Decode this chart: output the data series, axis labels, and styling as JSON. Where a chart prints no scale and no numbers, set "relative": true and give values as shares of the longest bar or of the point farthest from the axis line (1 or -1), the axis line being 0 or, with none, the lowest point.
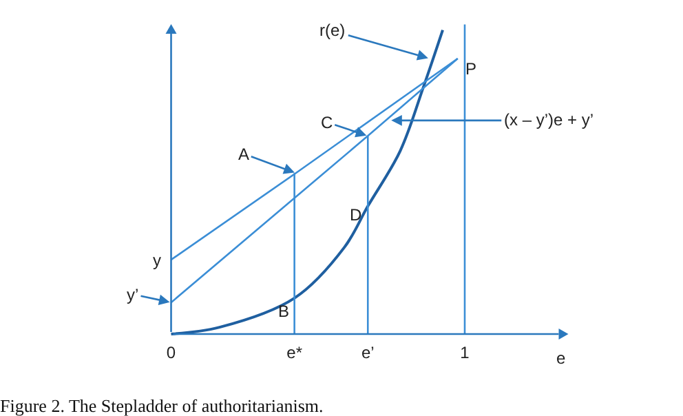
{
  "chart_data": {
    "type": "line",
    "relative": true,
    "title": "Figure 2. The Stepladder of authoritarianism.",
    "xlabel": "e",
    "xlim": [
      0,
      1.32
    ],
    "xticks": [
      0,
      {
        "value": 0.42,
        "label": "e*"
      },
      {
        "value": 0.67,
        "label": "e’"
      },
      1
    ],
    "marker": "none",
    "line_style": "solid",
    "series": [
      {
        "color": "#1f5fa0",
        "x": [
          0,
          0.165,
          0.42,
          0.59,
          0.67,
          0.78,
          0.86,
          0.925
        ],
        "values": [
          0,
          0.022,
          0.116,
          0.28,
          0.413,
          0.591,
          0.8,
          0.982
        ]
      },
      {
        "color": "#3b8ed6",
        "x": [
          0,
          0.425,
          0.976
        ],
        "values": [
          0.24,
          0.52,
          0.89
        ]
      },
      {
        "color": "#3b8ed6",
        "x": [
          0,
          0.67,
          0.976
        ],
        "values": [
          0.102,
          0.64,
          0.89
        ]
      },
      {
        "color": "#3b8ed6",
        "x": [
          0.42,
          0.42
        ],
        "values": [
          0,
          0.52
        ]
      },
      {
        "color": "#3b8ed6",
        "x": [
          0.67,
          0.67
        ],
        "values": [
          0,
          0.64
        ]
      },
      {
        "color": "#3b8ed6",
        "x": [
          1,
          1
        ],
        "values": [
          0,
          1
        ]
      }
    ],
    "annotations": [
      {
        "text": "r(e)",
        "x": 0.88,
        "y": 0.89
      },
      {
        "text": "P",
        "x": 0.976,
        "y": 0.89
      },
      {
        "text": "(x – y’)e + y’",
        "x": 0.745,
        "y": 0.69
      },
      {
        "text": "C",
        "x": 0.67,
        "y": 0.64
      },
      {
        "text": "A",
        "x": 0.425,
        "y": 0.52
      },
      {
        "text": "D",
        "x": 0.67,
        "y": 0.413
      },
      {
        "text": "B",
        "x": 0.42,
        "y": 0.116
      },
      {
        "text": "y",
        "x": 0,
        "y": 0.24
      },
      {
        "text": "y’",
        "x": 0,
        "y": 0.102
      }
    ]
  }
}
